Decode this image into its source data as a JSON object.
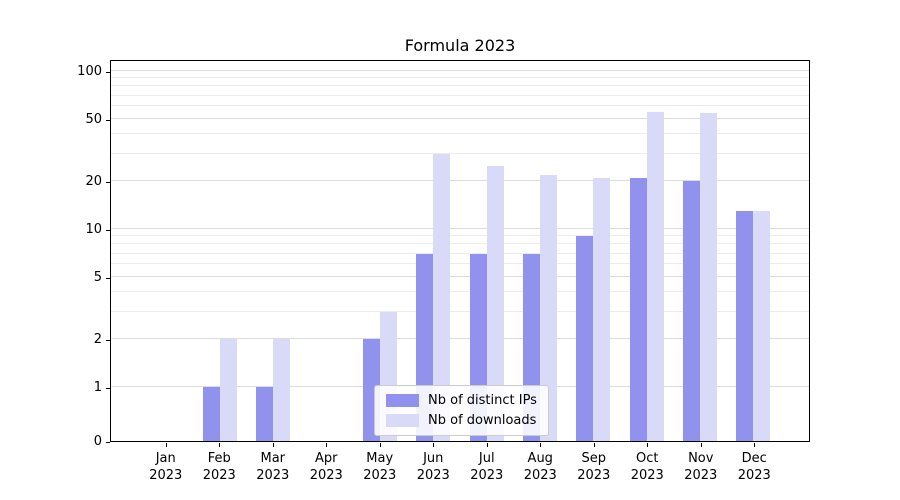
{
  "chart_data": {
    "type": "bar",
    "title": "Formula 2023",
    "months": [
      "Jan",
      "Feb",
      "Mar",
      "Apr",
      "May",
      "Jun",
      "Jul",
      "Aug",
      "Sep",
      "Oct",
      "Nov",
      "Dec"
    ],
    "year": "2023",
    "series": [
      {
        "name": "Nb of distinct IPs",
        "color": "#9191ee",
        "values": [
          0,
          1,
          1,
          0,
          2,
          7,
          7,
          7,
          9,
          21,
          20,
          13
        ]
      },
      {
        "name": "Nb of downloads",
        "color": "#d9d9f8",
        "values": [
          0,
          2,
          2,
          0,
          3,
          30,
          25,
          22,
          21,
          55,
          54,
          13
        ]
      }
    ],
    "yscale": "symlog",
    "y_ticks": [
      0,
      1,
      2,
      5,
      10,
      20,
      50,
      100
    ],
    "y_minor_ticks": [
      3,
      4,
      6,
      7,
      8,
      9,
      30,
      40,
      60,
      70,
      80,
      90
    ],
    "ylim": [
      0,
      150
    ],
    "grid": true,
    "legend_position": "lower center"
  }
}
